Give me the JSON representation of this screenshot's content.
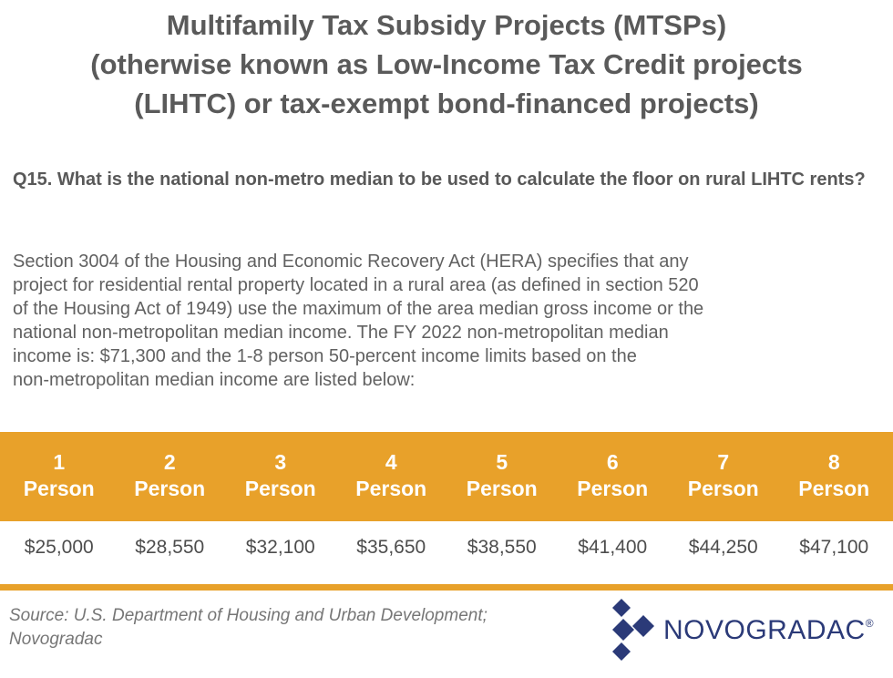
{
  "title": {
    "lines": [
      "Multifamily Tax Subsidy Projects (MTSPs)",
      "(otherwise known as Low-Income Tax Credit projects",
      "(LIHTC) or tax-exempt bond-financed projects)"
    ]
  },
  "question": "Q15. What is the national non-metro median to be used to calculate the floor on rural LIHTC rents?",
  "answer": {
    "lines": [
      "Section 3004 of the Housing and Economic Recovery Act (HERA) specifies that any",
      "project for residential rental property located in a rural area (as defined in section 520",
      "of the Housing Act of 1949) use the maximum of the area median gross income or the",
      "national non-metropolitan median income. The FY 2022 non-metropolitan median",
      "income is: $71,300 and the 1-8 person 50-percent income limits based on the",
      "non-metropolitan median income are listed below:"
    ]
  },
  "table": {
    "headers": [
      {
        "number": "1",
        "unit": "Person"
      },
      {
        "number": "2",
        "unit": "Person"
      },
      {
        "number": "3",
        "unit": "Person"
      },
      {
        "number": "4",
        "unit": "Person"
      },
      {
        "number": "5",
        "unit": "Person"
      },
      {
        "number": "6",
        "unit": "Person"
      },
      {
        "number": "7",
        "unit": "Person"
      },
      {
        "number": "8",
        "unit": "Person"
      }
    ],
    "values": [
      "$25,000",
      "$28,550",
      "$32,100",
      "$35,650",
      "$38,550",
      "$41,400",
      "$44,250",
      "$47,100"
    ]
  },
  "source": {
    "lines": [
      "Source: U.S. Department of Housing and Urban Development;",
      "Novogradac"
    ]
  },
  "logo": {
    "text": "NOVOGRADAC",
    "mark": "®"
  },
  "colors": {
    "accent": "#e8a12a",
    "brand": "#2b3a78"
  }
}
